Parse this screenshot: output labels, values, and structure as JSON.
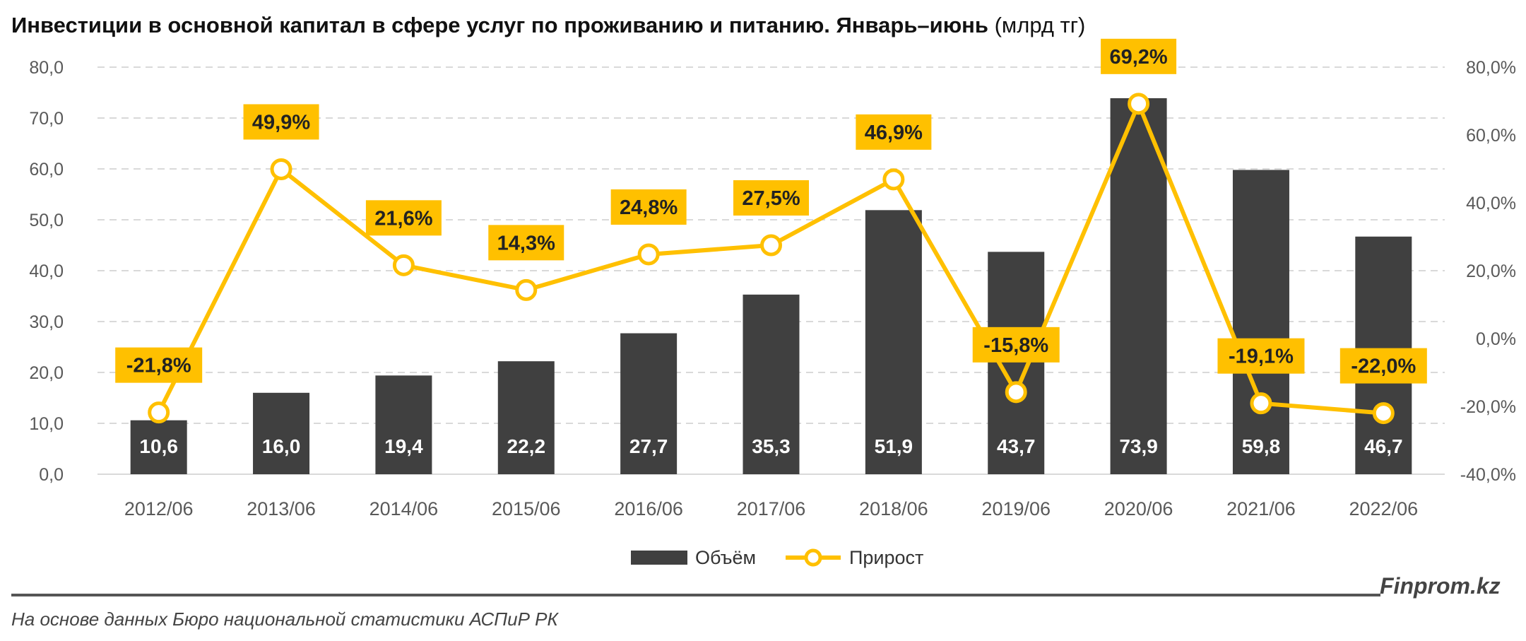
{
  "title": "Инвестиции в основной капитал в сфере услуг по проживанию и питанию. Январь–июнь",
  "unit": "(млрд тг)",
  "brand": "Finprom.kz",
  "source": "На основе данных Бюро национальной статистики АСПиР РК",
  "chart_data": {
    "type": "bar",
    "categories": [
      "2012/06",
      "2013/06",
      "2014/06",
      "2015/06",
      "2016/06",
      "2017/06",
      "2018/06",
      "2019/06",
      "2020/06",
      "2021/06",
      "2022/06"
    ],
    "series": [
      {
        "name": "Объём",
        "type": "bar",
        "axis": "left",
        "values": [
          10.6,
          16.0,
          19.4,
          22.2,
          27.7,
          35.3,
          51.9,
          43.7,
          73.9,
          59.8,
          46.7
        ],
        "labels": [
          "10,6",
          "16,0",
          "19,4",
          "22,2",
          "27,7",
          "35,3",
          "51,9",
          "43,7",
          "73,9",
          "59,8",
          "46,7"
        ]
      },
      {
        "name": "Прирост",
        "type": "line",
        "axis": "right",
        "values": [
          -21.8,
          49.9,
          21.6,
          14.3,
          24.8,
          27.5,
          46.9,
          -15.8,
          69.2,
          -19.1,
          -22.0
        ],
        "labels": [
          "-21,8%",
          "49,9%",
          "21,6%",
          "14,3%",
          "24,8%",
          "27,5%",
          "46,9%",
          "-15,8%",
          "69,2%",
          "-19,1%",
          "-22,0%"
        ]
      }
    ],
    "y_left": {
      "min": 0,
      "max": 80,
      "ticks": [
        "0,0",
        "10,0",
        "20,0",
        "30,0",
        "40,0",
        "50,0",
        "60,0",
        "70,0",
        "80,0"
      ]
    },
    "y_right": {
      "min": -40,
      "max": 80,
      "ticks": [
        "-40,0%",
        "-20,0%",
        "0,0%",
        "20,0%",
        "40,0%",
        "60,0%",
        "80,0%"
      ]
    },
    "grid": true,
    "legend": "bottom-center",
    "colors": {
      "bar": "#404040",
      "line": "#FFC000",
      "label_bg": "#FFC000",
      "bar_label": "#FFFFFF"
    }
  }
}
